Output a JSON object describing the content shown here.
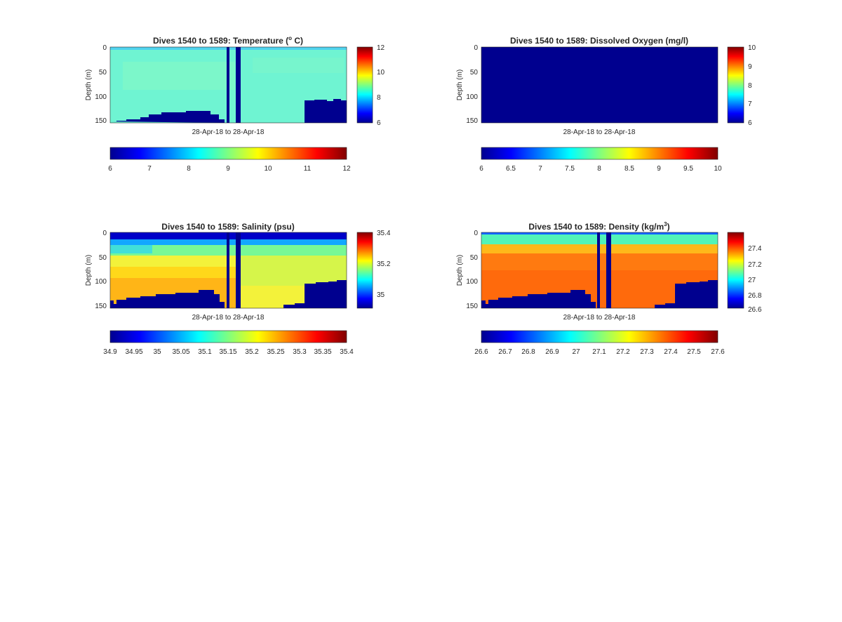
{
  "figure": {
    "panels": [
      {
        "id": "temperature",
        "title": "Dives 1540 to 1589: Temperature (",
        "title_sup": "o",
        "title_suffix": " C)",
        "ylabel": "Depth (m)",
        "xlabel": "28-Apr-18 to 28-Apr-18",
        "yticks": [
          "0",
          "50",
          "100",
          "150"
        ],
        "colorbar_ticks": [
          "6",
          "8",
          "10",
          "12"
        ],
        "bottom_colorbar_ticks": [
          "6",
          "7",
          "8",
          "9",
          "10",
          "11",
          "12"
        ]
      },
      {
        "id": "oxygen",
        "title": "Dives 1540 to 1589: Dissolved Oxygen (mg/l)",
        "title_sup": "",
        "title_suffix": "",
        "ylabel": "Depth (m)",
        "xlabel": "28-Apr-18 to 28-Apr-18",
        "yticks": [
          "0",
          "50",
          "100",
          "150"
        ],
        "colorbar_ticks": [
          "6",
          "7",
          "8",
          "9",
          "10"
        ],
        "bottom_colorbar_ticks": [
          "6",
          "6.5",
          "7",
          "7.5",
          "8",
          "8.5",
          "9",
          "9.5",
          "10"
        ]
      },
      {
        "id": "salinity",
        "title": "Dives 1540 to 1589: Salinity (psu)",
        "title_sup": "",
        "title_suffix": "",
        "ylabel": "Depth (m)",
        "xlabel": "28-Apr-18 to 28-Apr-18",
        "yticks": [
          "0",
          "50",
          "100",
          "150"
        ],
        "colorbar_ticks": [
          "35",
          "35.2",
          "35.4"
        ],
        "bottom_colorbar_ticks": [
          "34.9",
          "34.95",
          "35",
          "35.05",
          "35.1",
          "35.15",
          "35.2",
          "35.25",
          "35.3",
          "35.35",
          "35.4"
        ]
      },
      {
        "id": "density",
        "title": "Dives 1540 to 1589: Density (kg/m",
        "title_sup": "3",
        "title_suffix": ")",
        "ylabel": "Depth (m)",
        "xlabel": "28-Apr-18 to 28-Apr-18",
        "yticks": [
          "0",
          "50",
          "100",
          "150"
        ],
        "colorbar_ticks": [
          "26.6",
          "26.8",
          "27",
          "27.2",
          "27.4"
        ],
        "bottom_colorbar_ticks": [
          "26.6",
          "26.7",
          "26.8",
          "26.9",
          "27",
          "27.1",
          "27.2",
          "27.3",
          "27.4",
          "27.5",
          "27.6"
        ]
      }
    ]
  },
  "chart_data": [
    {
      "type": "heatmap",
      "title": "Dives 1540 to 1589: Temperature (o C)",
      "xlabel": "28-Apr-18 to 28-Apr-18",
      "ylabel": "Depth (m)",
      "ylim": [
        0,
        155
      ],
      "y_reversed": true,
      "dives": [
        1540,
        1589
      ],
      "colormap": "jet",
      "clim_side": [
        6,
        12
      ],
      "clim_bottom": [
        6,
        12
      ],
      "profile_mean": [
        [
          0,
          7.7
        ],
        [
          10,
          8.5
        ],
        [
          30,
          8.5
        ],
        [
          60,
          8.4
        ],
        [
          100,
          8.3
        ],
        [
          130,
          8.2
        ],
        [
          150,
          8.1
        ]
      ],
      "bottom_depth_by_dive": [
        155,
        155,
        154,
        153,
        152,
        151,
        151,
        150,
        149,
        148,
        143,
        141,
        140,
        139,
        138,
        137,
        136,
        134,
        133,
        137,
        143,
        150,
        155,
        0,
        155,
        0,
        155,
        155,
        155,
        155,
        155,
        155,
        155,
        155,
        155,
        155,
        155,
        155,
        155,
        155,
        112,
        111,
        110,
        109,
        110,
        109,
        108,
        108,
        111,
        112
      ]
    },
    {
      "type": "heatmap",
      "title": "Dives 1540 to 1589: Dissolved Oxygen (mg/l)",
      "xlabel": "28-Apr-18 to 28-Apr-18",
      "ylabel": "Depth (m)",
      "ylim": [
        0,
        155
      ],
      "y_reversed": true,
      "dives": [
        1540,
        1589
      ],
      "colormap": "jet",
      "clim_side": [
        6,
        10
      ],
      "clim_bottom": [
        6,
        10
      ],
      "values": "all data below color range (uniform dark blue)"
    },
    {
      "type": "heatmap",
      "title": "Dives 1540 to 1589: Salinity (psu)",
      "xlabel": "28-Apr-18 to 28-Apr-18",
      "ylabel": "Depth (m)",
      "ylim": [
        0,
        155
      ],
      "y_reversed": true,
      "dives": [
        1540,
        1589
      ],
      "colormap": "jet",
      "clim_side": [
        34.9,
        35.4
      ],
      "clim_bottom": [
        34.9,
        35.4
      ],
      "profile_mean": [
        [
          0,
          34.9
        ],
        [
          20,
          34.95
        ],
        [
          40,
          35.05
        ],
        [
          60,
          35.15
        ],
        [
          90,
          35.2
        ],
        [
          120,
          35.25
        ],
        [
          150,
          35.27
        ]
      ],
      "bottom_depth_by_dive": [
        148,
        145,
        143,
        145,
        142,
        140,
        139,
        138,
        140,
        141,
        139,
        137,
        136,
        135,
        134,
        133,
        132,
        130,
        128,
        130,
        138,
        147,
        155,
        0,
        155,
        0,
        155,
        155,
        155,
        155,
        155,
        155,
        155,
        155,
        155,
        155,
        155,
        155,
        155,
        150,
        104,
        103,
        102,
        101,
        102,
        101,
        100,
        101,
        103,
        104
      ]
    },
    {
      "type": "heatmap",
      "title": "Dives 1540 to 1589: Density (kg/m3)",
      "xlabel": "28-Apr-18 to 28-Apr-18",
      "ylabel": "Depth (m)",
      "ylim": [
        0,
        155
      ],
      "y_reversed": true,
      "dives": [
        1540,
        1589
      ],
      "colormap": "jet",
      "clim_side": [
        26.6,
        27.6
      ],
      "clim_bottom": [
        26.6,
        27.6
      ],
      "profile_mean": [
        [
          0,
          26.95
        ],
        [
          15,
          27.1
        ],
        [
          30,
          27.3
        ],
        [
          60,
          27.35
        ],
        [
          100,
          27.38
        ],
        [
          150,
          27.4
        ]
      ],
      "bottom_depth_by_dive": [
        148,
        145,
        143,
        145,
        142,
        140,
        139,
        138,
        140,
        141,
        139,
        137,
        136,
        135,
        134,
        133,
        132,
        130,
        128,
        130,
        138,
        147,
        155,
        0,
        155,
        0,
        155,
        155,
        155,
        155,
        155,
        155,
        155,
        155,
        155,
        155,
        155,
        155,
        155,
        150,
        104,
        103,
        102,
        101,
        102,
        101,
        100,
        101,
        103,
        104
      ]
    }
  ]
}
